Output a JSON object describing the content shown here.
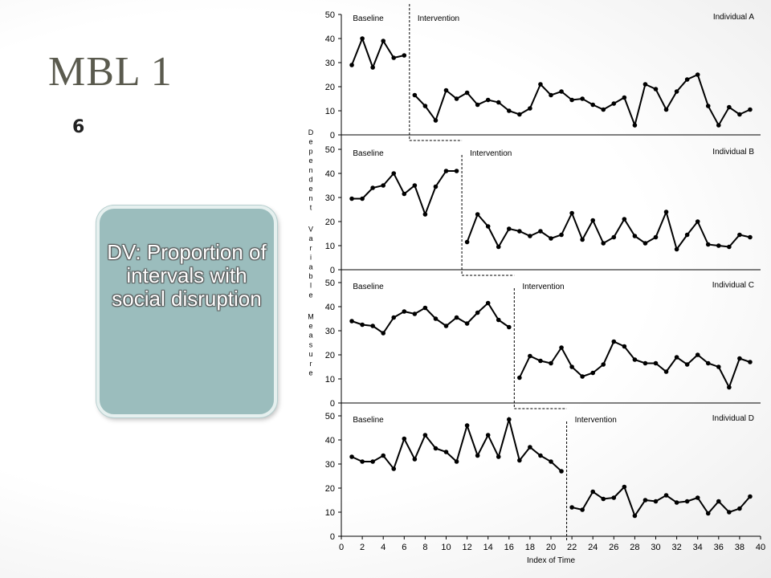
{
  "slide": {
    "title": "MBL 1",
    "number": "6",
    "dv_box_text": "DV: Proportion of intervals with social disruption"
  },
  "colors": {
    "box_fill": "#9bbdbd",
    "box_text": "#ffffff",
    "title": "#5a5a4e",
    "line": "#000000"
  },
  "chart_data": {
    "type": "line",
    "title": "",
    "xlabel": "Index of Time",
    "ylabel": "Dependent Variable Measure",
    "xlim": [
      0,
      40
    ],
    "ylim": [
      0,
      50
    ],
    "x_ticks": [
      0,
      2,
      4,
      6,
      8,
      10,
      12,
      14,
      16,
      18,
      20,
      22,
      24,
      26,
      28,
      30,
      32,
      34,
      36,
      38,
      40
    ],
    "y_ticks": [
      0,
      10,
      20,
      30,
      40,
      50
    ],
    "grid": false,
    "panels": [
      {
        "name": "Individual A",
        "phase_labels": [
          "Baseline",
          "Intervention"
        ],
        "phase_change_x": 6.5,
        "baseline": {
          "x": [
            1,
            2,
            3,
            4,
            5,
            6
          ],
          "y": [
            29,
            40,
            28,
            39,
            32,
            33
          ]
        },
        "intervention": {
          "x": [
            7,
            8,
            9,
            10,
            11,
            12,
            13,
            14,
            15,
            16,
            17,
            18,
            19,
            20,
            21,
            22,
            23,
            24,
            25,
            26,
            27,
            28,
            29,
            30,
            31,
            32,
            33,
            34,
            35,
            36,
            37,
            38,
            39
          ],
          "y": [
            16.5,
            12,
            6,
            18.5,
            15,
            17.5,
            12.5,
            14.5,
            13.5,
            10,
            8.5,
            11,
            21,
            16.5,
            18,
            14.5,
            15,
            12.5,
            10.5,
            13,
            15.5,
            4,
            21,
            19,
            10.5,
            18,
            23,
            25,
            12,
            4,
            11.5,
            8.5,
            10.5
          ]
        }
      },
      {
        "name": "Individual B",
        "phase_labels": [
          "Baseline",
          "Intervention"
        ],
        "phase_change_x": 11.5,
        "baseline": {
          "x": [
            1,
            2,
            3,
            4,
            5,
            6,
            7,
            8,
            9,
            10,
            11
          ],
          "y": [
            29.5,
            29.5,
            34,
            35,
            40,
            31.5,
            35,
            23,
            34.5,
            41,
            41
          ]
        },
        "intervention": {
          "x": [
            12,
            13,
            14,
            15,
            16,
            17,
            18,
            19,
            20,
            21,
            22,
            23,
            24,
            25,
            26,
            27,
            28,
            29,
            30,
            31,
            32,
            33,
            34,
            35,
            36,
            37,
            38,
            39
          ],
          "y": [
            11.5,
            23,
            18,
            9.5,
            17,
            16,
            14,
            16,
            13,
            14.5,
            23.5,
            12.5,
            20.5,
            11,
            13.5,
            21,
            14,
            11,
            13.5,
            24,
            8.5,
            14.5,
            20,
            10.5,
            10,
            9.5,
            14.5,
            13.5
          ]
        }
      },
      {
        "name": "Individual C",
        "phase_labels": [
          "Baseline",
          "Intervention"
        ],
        "phase_change_x": 16.5,
        "baseline": {
          "x": [
            1,
            2,
            3,
            4,
            5,
            6,
            7,
            8,
            9,
            10,
            11,
            12,
            13,
            14,
            15,
            16
          ],
          "y": [
            34,
            32.5,
            32,
            29,
            35.5,
            38,
            37,
            39.5,
            35,
            32,
            35.5,
            33,
            37.5,
            41.5,
            34.5,
            31.5
          ]
        },
        "intervention": {
          "x": [
            17,
            18,
            19,
            20,
            21,
            22,
            23,
            24,
            25,
            26,
            27,
            28,
            29,
            30,
            31,
            32,
            33,
            34,
            35,
            36,
            37,
            38,
            39
          ],
          "y": [
            10.5,
            19.5,
            17.5,
            16.5,
            23,
            15,
            11,
            12.5,
            16,
            25.5,
            23.5,
            18,
            16.5,
            16.5,
            13,
            19,
            16,
            20,
            16.5,
            15,
            6.5,
            18.5,
            17
          ]
        }
      },
      {
        "name": "Individual D",
        "phase_labels": [
          "Baseline",
          "Intervention"
        ],
        "phase_change_x": 21.5,
        "baseline": {
          "x": [
            1,
            2,
            3,
            4,
            5,
            6,
            7,
            8,
            9,
            10,
            11,
            12,
            13,
            14,
            15,
            16,
            17,
            18,
            19,
            20,
            21
          ],
          "y": [
            33,
            31,
            31,
            33.5,
            28,
            40.5,
            32,
            42,
            36.5,
            35,
            31,
            46,
            33.5,
            42,
            33,
            48.5,
            31.5,
            37,
            33.5,
            31,
            27
          ]
        },
        "intervention": {
          "x": [
            22,
            23,
            24,
            25,
            26,
            27,
            28,
            29,
            30,
            31,
            32,
            33,
            34,
            35,
            36,
            37,
            38,
            39
          ],
          "y": [
            12,
            11,
            18.5,
            15.5,
            16,
            20.5,
            8.5,
            15,
            14.5,
            17,
            14,
            14.5,
            16,
            9.5,
            14.5,
            10,
            11.5,
            16.5
          ]
        }
      }
    ]
  }
}
